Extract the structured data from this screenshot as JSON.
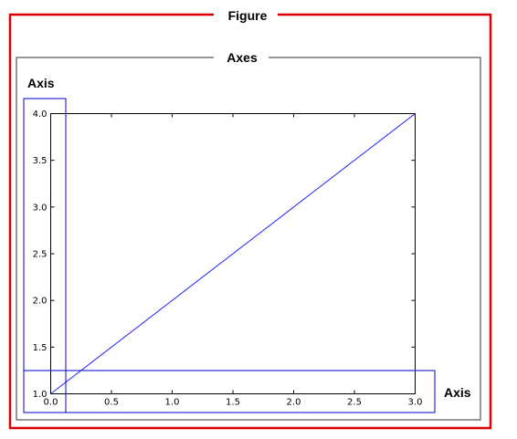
{
  "labels": {
    "figure": "Figure",
    "axes": "Axes",
    "y_axis": "Axis",
    "x_axis": "Axis"
  },
  "colors": {
    "figure_border": "#dd0000",
    "axes_border": "#777777",
    "axis_highlight": "#0000cc",
    "plot_line": "#2222ff",
    "plot_frame": "#000000"
  },
  "chart_data": {
    "type": "line",
    "x": [
      0.0,
      3.0
    ],
    "series": [
      {
        "values": [
          1.0,
          4.0
        ]
      }
    ],
    "xlim": [
      0.0,
      3.0
    ],
    "ylim": [
      1.0,
      4.0
    ],
    "xticks": [
      0.0,
      0.5,
      1.0,
      1.5,
      2.0,
      2.5,
      3.0
    ],
    "yticks": [
      1.0,
      1.5,
      2.0,
      2.5,
      3.0,
      3.5,
      4.0
    ],
    "xtick_labels": [
      "0.0",
      "0.5",
      "1.0",
      "1.5",
      "2.0",
      "2.5",
      "3.0"
    ],
    "ytick_labels": [
      "1.0",
      "1.5",
      "2.0",
      "2.5",
      "3.0",
      "3.5",
      "4.0"
    ],
    "grid": false
  }
}
